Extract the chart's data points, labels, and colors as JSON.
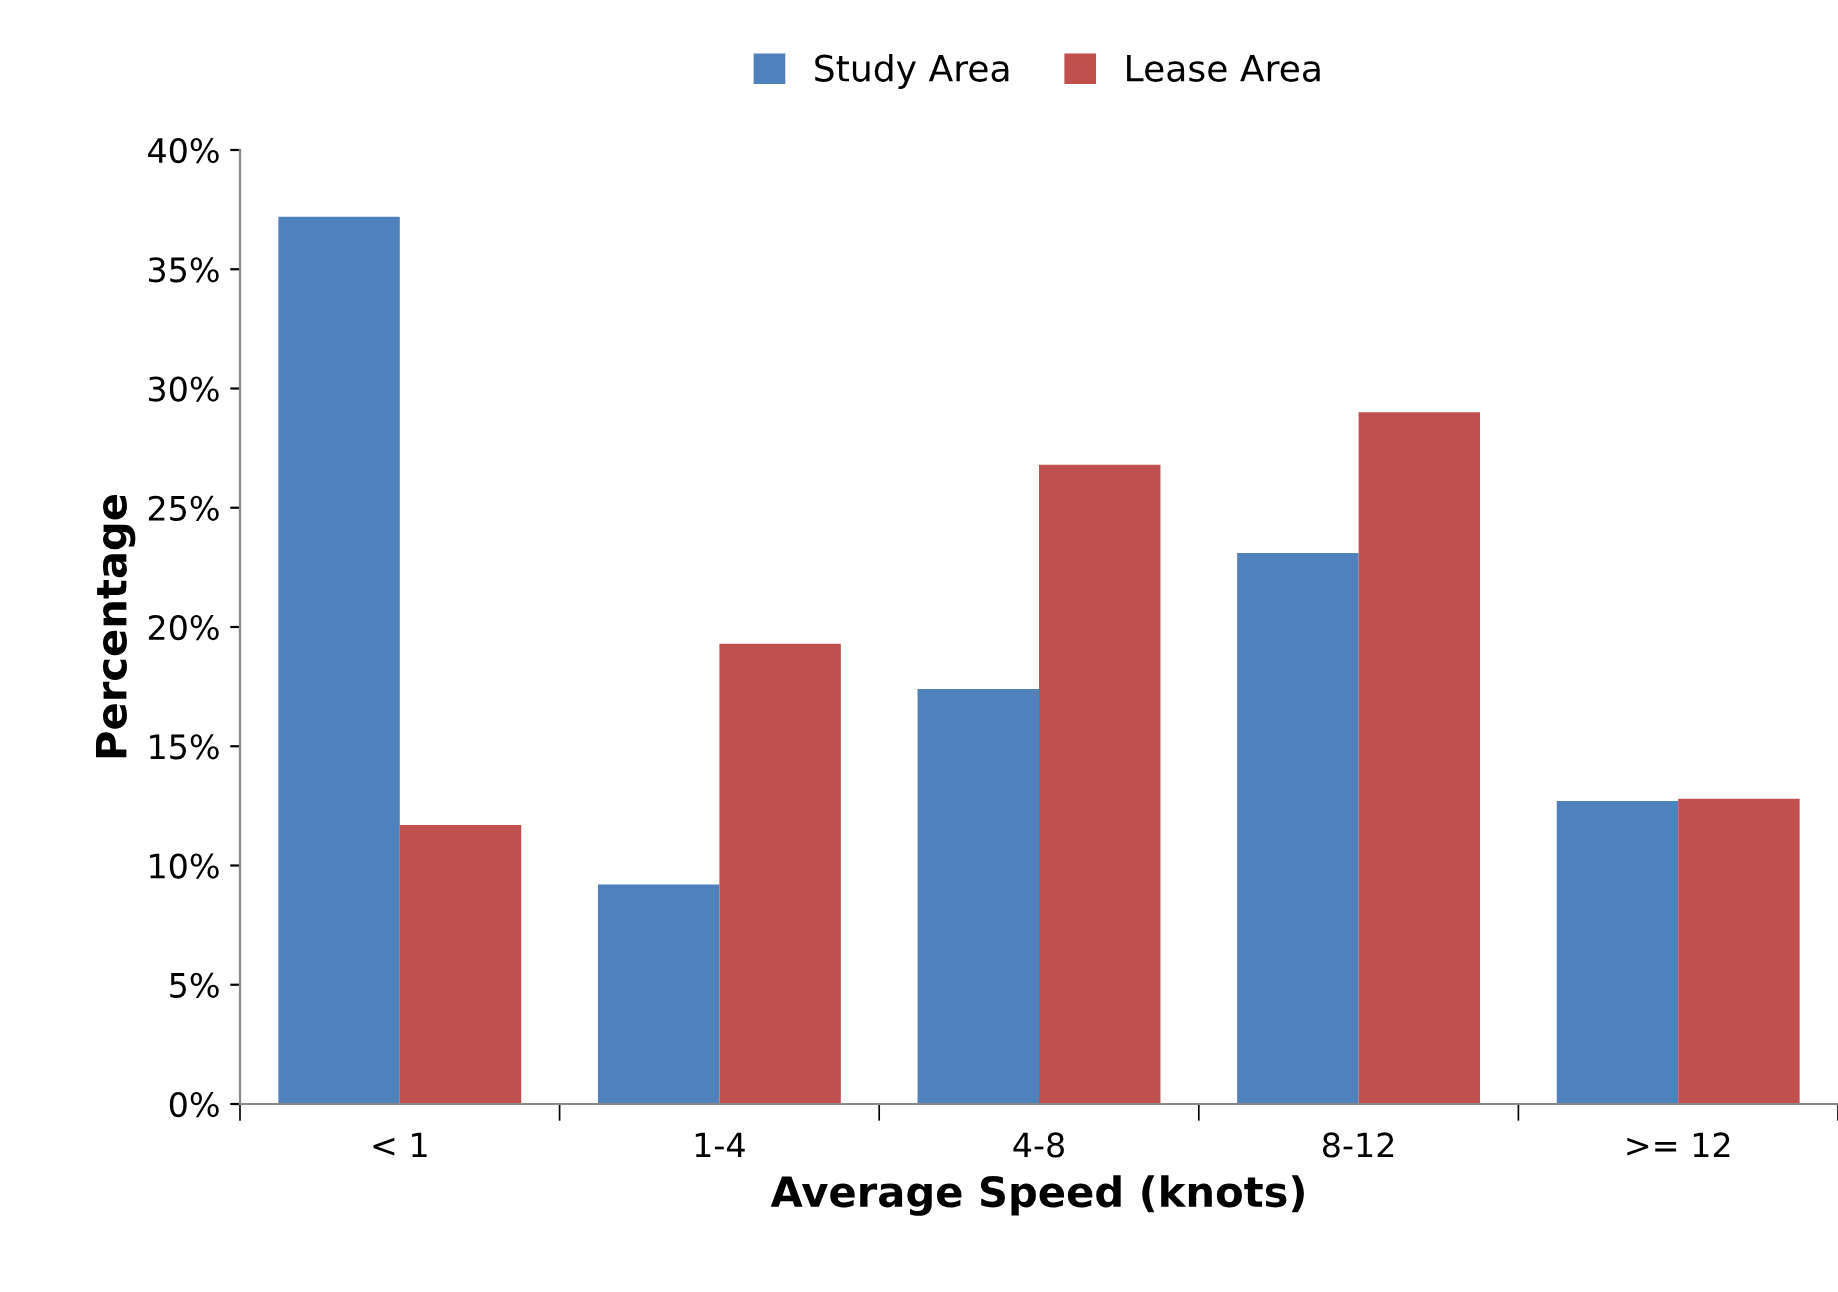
{
  "chart_data": {
    "type": "bar",
    "xlabel": "Average Speed (knots)",
    "ylabel": "Percentage",
    "categories": [
      "< 1",
      "1-4",
      "4-8",
      "8-12",
      ">= 12"
    ],
    "series": [
      {
        "name": "Study Area",
        "color": "#4f81bd",
        "values": [
          37.2,
          9.2,
          17.4,
          23.1,
          12.7
        ]
      },
      {
        "name": "Lease Area",
        "color": "#c0504d",
        "values": [
          11.7,
          19.3,
          26.8,
          29.0,
          12.8
        ]
      }
    ],
    "ylim": [
      0,
      40
    ],
    "yticks": [
      {
        "value": 0,
        "label": "0%"
      },
      {
        "value": 5,
        "label": "5%"
      },
      {
        "value": 10,
        "label": "10%"
      },
      {
        "value": 15,
        "label": "15%"
      },
      {
        "value": 20,
        "label": "20%"
      },
      {
        "value": 25,
        "label": "25%"
      },
      {
        "value": 30,
        "label": "30%"
      },
      {
        "value": 35,
        "label": "35%"
      },
      {
        "value": 40,
        "label": "40%"
      }
    ],
    "grid": false,
    "legend": "top"
  }
}
